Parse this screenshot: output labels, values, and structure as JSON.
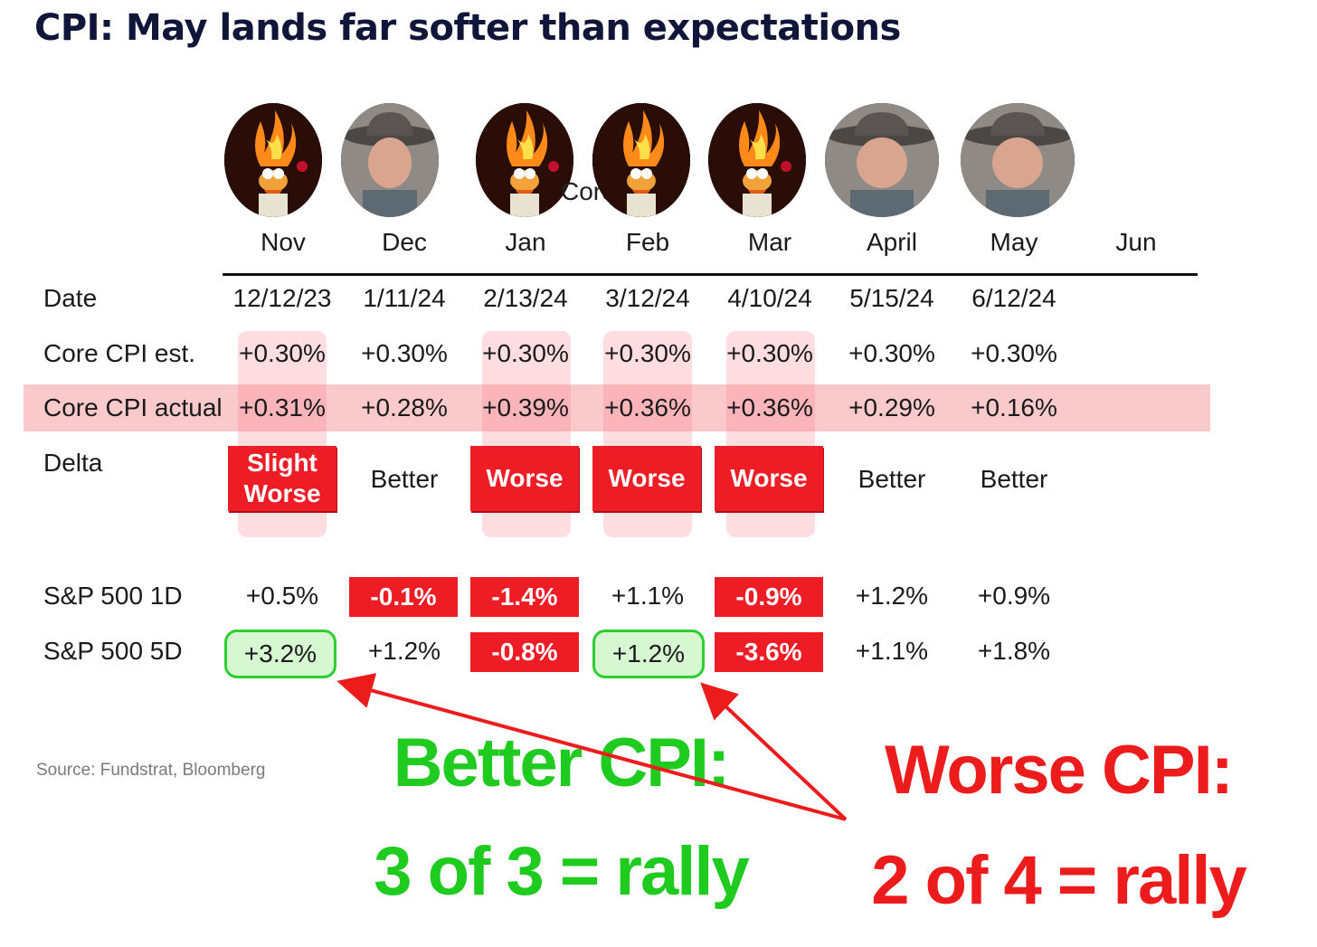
{
  "title": "CPI: May lands far softer than expectations",
  "overlay_text": "Core CPI Report",
  "months": [
    "Nov",
    "Dec",
    "Jan",
    "Feb",
    "Mar",
    "April",
    "May",
    "Jun"
  ],
  "avatars": [
    {
      "month": "Nov",
      "icon": "flaming-puppet-icon"
    },
    {
      "month": "Dec",
      "icon": "cowboy-hat-man-icon"
    },
    {
      "month": "Jan",
      "icon": "flaming-puppet-icon"
    },
    {
      "month": "Feb",
      "icon": "flaming-puppet-icon"
    },
    {
      "month": "Mar",
      "icon": "flaming-puppet-icon"
    },
    {
      "month": "April",
      "icon": "cowboy-hat-man-icon"
    },
    {
      "month": "May",
      "icon": "cowboy-hat-man-icon"
    }
  ],
  "row_labels": {
    "date": "Date",
    "core_est": "Core CPI est.",
    "core_actual": "Core CPI actual",
    "delta": "Delta",
    "sp1d": "S&P 500 1D",
    "sp5d": "S&P 500 5D"
  },
  "dates": [
    "12/12/23",
    "1/11/24",
    "2/13/24",
    "3/12/24",
    "4/10/24",
    "5/15/24",
    "6/12/24"
  ],
  "core_est": [
    "+0.30%",
    "+0.30%",
    "+0.30%",
    "+0.30%",
    "+0.30%",
    "+0.30%",
    "+0.30%"
  ],
  "core_actual": [
    "+0.31%",
    "+0.28%",
    "+0.39%",
    "+0.36%",
    "+0.36%",
    "+0.29%",
    "+0.16%"
  ],
  "delta": [
    "Slight Worse",
    "Better",
    "Worse",
    "Worse",
    "Worse",
    "Better",
    "Better"
  ],
  "sp1d": [
    "+0.5%",
    "-0.1%",
    "-1.4%",
    "+1.1%",
    "-0.9%",
    "+1.2%",
    "+0.9%"
  ],
  "sp5d": [
    "+3.2%",
    "+1.2%",
    "-0.8%",
    "+1.2%",
    "-3.6%",
    "+1.1%",
    "+1.8%"
  ],
  "source": "Source: Fundstrat, Bloomberg",
  "callouts": {
    "better_line1": "Better CPI:",
    "better_line2": "3 of 3 = rally",
    "worse_line1": "Worse CPI:",
    "worse_line2": "2 of 4 = rally"
  },
  "colors": {
    "title": "#10163a",
    "negative_badge": "#ee1c25",
    "highlight_band": "#f9c9cc",
    "green_callout": "#1ecb1e",
    "red_callout": "#ec1c1c",
    "green_box_border": "#2fce2f"
  }
}
